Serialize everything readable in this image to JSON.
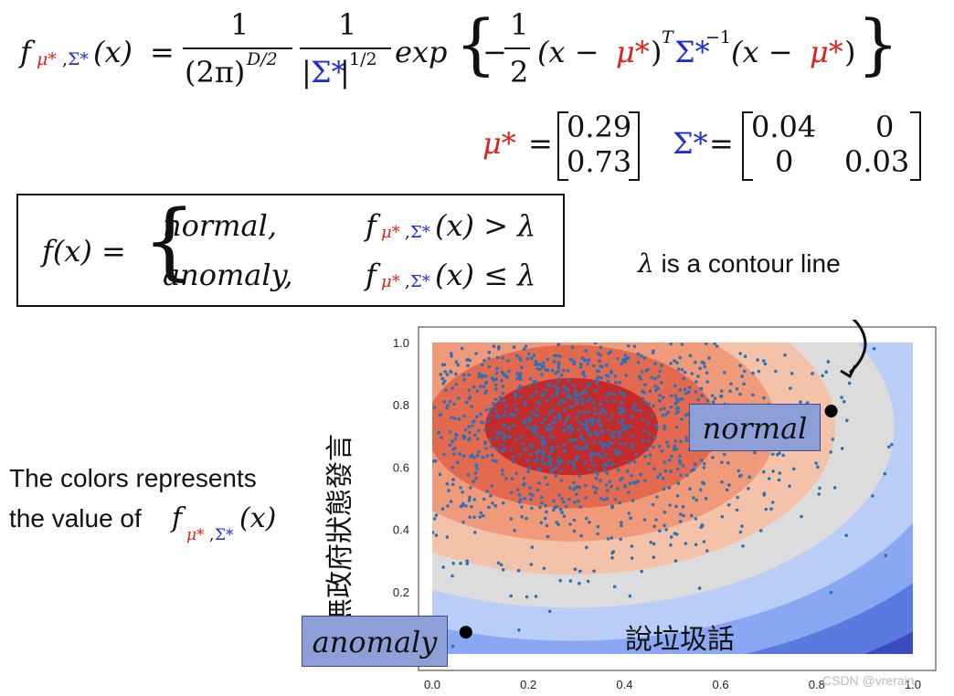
{
  "formula": {
    "f_symbol": "f",
    "mu_star": "μ*",
    "comma": ",",
    "sigma_star": "Σ*",
    "arg": "(x)",
    "equals": "=",
    "numerator_one": "1",
    "denominator_two_pi": "(2π)",
    "exp_D2": "D/2",
    "det_sigma_left": "|",
    "det_sigma_right": "|",
    "exp_half": "1/2",
    "exp_word": "exp",
    "minus": "−",
    "half_num": "1",
    "half_den": "2",
    "open_paren_x": "(x −",
    "close_paren": ")",
    "transpose": "T",
    "inv": "−1"
  },
  "params": {
    "mu_label": "μ*",
    "mu_values": [
      "0.29",
      "0.73"
    ],
    "sigma_label": "Σ*",
    "sigma_values": [
      "0.04",
      "0",
      "0",
      "0.03"
    ]
  },
  "decision": {
    "lhs": "f(x) =",
    "case_normal": "normal,",
    "case_anomaly": "anomaly,",
    "cond_normal_op": "(x) > λ",
    "cond_anomaly_op": "(x) ≤ λ"
  },
  "annotations": {
    "lambda_symbol": "λ",
    "lambda_text": "is a contour line",
    "colors_line1": "The colors represents",
    "colors_line2": "the value of",
    "normal_label": "normal",
    "anomaly_label": "anomaly",
    "watermark": "CSDN @vrerain"
  },
  "chart_data": {
    "type": "contour",
    "xlabel": "說垃圾話",
    "ylabel": "無政府狀態發言",
    "xlim": [
      0.0,
      1.0
    ],
    "ylim": [
      0.0,
      1.0
    ],
    "xticks": [
      "0.0",
      "0.2",
      "0.4",
      "0.6",
      "0.8",
      "1.0"
    ],
    "yticks": [
      "0.2",
      "0.4",
      "0.6",
      "0.8",
      "1.0"
    ],
    "mean": [
      0.29,
      0.73
    ],
    "covariance": [
      [
        0.04,
        0
      ],
      [
        0,
        0.03
      ]
    ],
    "palette": [
      "#3b4cc0",
      "#5b7ae0",
      "#89a7f3",
      "#b9cdf7",
      "#dcdcdc",
      "#f4c2a8",
      "#f09a7a",
      "#e36a4f",
      "#c32b2a"
    ],
    "points_color": "#2a72b8",
    "highlighted_points": [
      {
        "label": "normal",
        "x": 0.83,
        "y": 0.78
      },
      {
        "label": "anomaly",
        "x": 0.07,
        "y": 0.07
      }
    ]
  }
}
